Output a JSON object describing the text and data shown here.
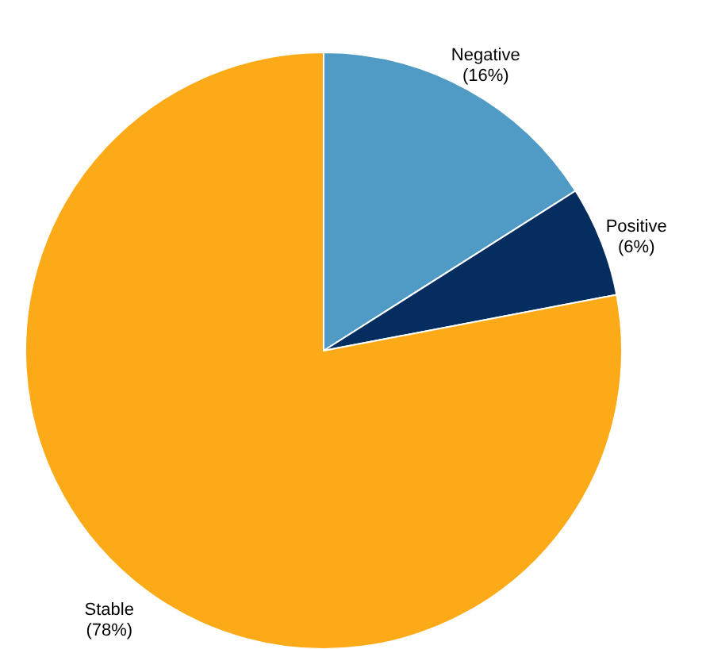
{
  "chart_data": {
    "type": "pie",
    "categories": [
      "Negative",
      "Positive",
      "Stable"
    ],
    "values": [
      16,
      6,
      78
    ],
    "value_labels": [
      "(16%)",
      "(6%)",
      "(78%)"
    ],
    "colors": [
      "#4f9bc6",
      "#062d5f",
      "#fdaa19"
    ]
  }
}
